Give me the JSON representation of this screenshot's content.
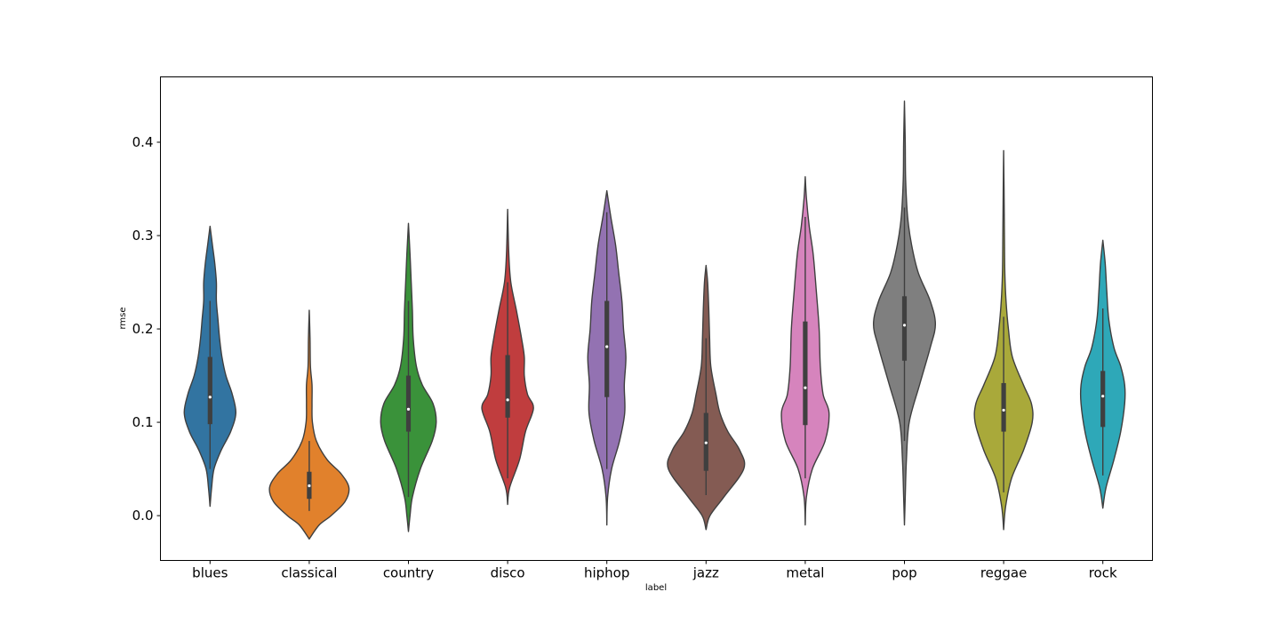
{
  "chart_data": {
    "type": "violin",
    "xlabel": "label",
    "ylabel": "rmse",
    "ylim": [
      -0.048,
      0.47
    ],
    "yticks": [
      0.0,
      0.1,
      0.2,
      0.3,
      0.4
    ],
    "ytick_labels": [
      "0.0",
      "0.1",
      "0.2",
      "0.3",
      "0.4"
    ],
    "grid": false,
    "categories": [
      "blues",
      "classical",
      "country",
      "disco",
      "hiphop",
      "jazz",
      "metal",
      "pop",
      "reggae",
      "rock"
    ],
    "series": [
      {
        "category": "blues",
        "color": "#3274a1",
        "min": 0.01,
        "max": 0.31,
        "q1": 0.098,
        "median": 0.127,
        "q3": 0.17,
        "whisker_low": 0.05,
        "whisker_high": 0.23,
        "profile": [
          [
            0.01,
            0.0
          ],
          [
            0.03,
            0.04
          ],
          [
            0.05,
            0.1
          ],
          [
            0.07,
            0.28
          ],
          [
            0.09,
            0.52
          ],
          [
            0.11,
            0.65
          ],
          [
            0.13,
            0.56
          ],
          [
            0.15,
            0.4
          ],
          [
            0.17,
            0.3
          ],
          [
            0.19,
            0.24
          ],
          [
            0.21,
            0.2
          ],
          [
            0.23,
            0.16
          ],
          [
            0.25,
            0.16
          ],
          [
            0.27,
            0.12
          ],
          [
            0.29,
            0.06
          ],
          [
            0.31,
            0.0
          ]
        ]
      },
      {
        "category": "classical",
        "color": "#e1812c",
        "min": -0.025,
        "max": 0.22,
        "q1": 0.018,
        "median": 0.032,
        "q3": 0.047,
        "whisker_low": 0.005,
        "whisker_high": 0.08,
        "profile": [
          [
            -0.025,
            0.0
          ],
          [
            -0.01,
            0.25
          ],
          [
            0.0,
            0.55
          ],
          [
            0.015,
            0.9
          ],
          [
            0.03,
            1.0
          ],
          [
            0.045,
            0.8
          ],
          [
            0.06,
            0.45
          ],
          [
            0.08,
            0.18
          ],
          [
            0.1,
            0.08
          ],
          [
            0.12,
            0.07
          ],
          [
            0.14,
            0.07
          ],
          [
            0.16,
            0.03
          ],
          [
            0.19,
            0.02
          ],
          [
            0.22,
            0.0
          ]
        ]
      },
      {
        "category": "country",
        "color": "#3a923a",
        "min": -0.017,
        "max": 0.313,
        "q1": 0.09,
        "median": 0.114,
        "q3": 0.15,
        "whisker_low": 0.02,
        "whisker_high": 0.23,
        "profile": [
          [
            -0.017,
            0.0
          ],
          [
            0.0,
            0.04
          ],
          [
            0.02,
            0.1
          ],
          [
            0.05,
            0.3
          ],
          [
            0.08,
            0.6
          ],
          [
            0.1,
            0.7
          ],
          [
            0.12,
            0.62
          ],
          [
            0.14,
            0.35
          ],
          [
            0.16,
            0.2
          ],
          [
            0.19,
            0.12
          ],
          [
            0.22,
            0.1
          ],
          [
            0.25,
            0.07
          ],
          [
            0.28,
            0.04
          ],
          [
            0.313,
            0.0
          ]
        ]
      },
      {
        "category": "disco",
        "color": "#c03d3e",
        "min": 0.012,
        "max": 0.328,
        "q1": 0.105,
        "median": 0.124,
        "q3": 0.172,
        "whisker_low": 0.04,
        "whisker_high": 0.25,
        "profile": [
          [
            0.012,
            0.0
          ],
          [
            0.03,
            0.05
          ],
          [
            0.06,
            0.3
          ],
          [
            0.09,
            0.45
          ],
          [
            0.115,
            0.65
          ],
          [
            0.13,
            0.5
          ],
          [
            0.15,
            0.42
          ],
          [
            0.17,
            0.42
          ],
          [
            0.19,
            0.35
          ],
          [
            0.22,
            0.22
          ],
          [
            0.25,
            0.08
          ],
          [
            0.28,
            0.03
          ],
          [
            0.328,
            0.0
          ]
        ]
      },
      {
        "category": "hiphop",
        "color": "#9372b2",
        "min": -0.01,
        "max": 0.348,
        "q1": 0.127,
        "median": 0.181,
        "q3": 0.23,
        "whisker_low": 0.05,
        "whisker_high": 0.325,
        "profile": [
          [
            -0.01,
            0.0
          ],
          [
            0.02,
            0.02
          ],
          [
            0.05,
            0.12
          ],
          [
            0.08,
            0.32
          ],
          [
            0.11,
            0.45
          ],
          [
            0.14,
            0.44
          ],
          [
            0.17,
            0.48
          ],
          [
            0.2,
            0.42
          ],
          [
            0.23,
            0.38
          ],
          [
            0.26,
            0.3
          ],
          [
            0.29,
            0.22
          ],
          [
            0.32,
            0.1
          ],
          [
            0.348,
            0.0
          ]
        ]
      },
      {
        "category": "jazz",
        "color": "#845b53",
        "min": -0.015,
        "max": 0.268,
        "q1": 0.048,
        "median": 0.078,
        "q3": 0.11,
        "whisker_low": 0.022,
        "whisker_high": 0.19,
        "profile": [
          [
            -0.015,
            0.0
          ],
          [
            0.0,
            0.1
          ],
          [
            0.02,
            0.45
          ],
          [
            0.05,
            0.95
          ],
          [
            0.07,
            0.85
          ],
          [
            0.09,
            0.55
          ],
          [
            0.11,
            0.35
          ],
          [
            0.13,
            0.25
          ],
          [
            0.16,
            0.12
          ],
          [
            0.19,
            0.09
          ],
          [
            0.22,
            0.07
          ],
          [
            0.25,
            0.04
          ],
          [
            0.268,
            0.0
          ]
        ]
      },
      {
        "category": "metal",
        "color": "#d684bd",
        "min": -0.01,
        "max": 0.363,
        "q1": 0.097,
        "median": 0.137,
        "q3": 0.208,
        "whisker_low": 0.04,
        "whisker_high": 0.32,
        "profile": [
          [
            -0.01,
            0.0
          ],
          [
            0.02,
            0.03
          ],
          [
            0.05,
            0.18
          ],
          [
            0.08,
            0.5
          ],
          [
            0.11,
            0.6
          ],
          [
            0.13,
            0.45
          ],
          [
            0.16,
            0.38
          ],
          [
            0.2,
            0.35
          ],
          [
            0.24,
            0.28
          ],
          [
            0.28,
            0.2
          ],
          [
            0.31,
            0.1
          ],
          [
            0.34,
            0.03
          ],
          [
            0.363,
            0.0
          ]
        ]
      },
      {
        "category": "pop",
        "color": "#7f7f7f",
        "min": -0.01,
        "max": 0.444,
        "q1": 0.166,
        "median": 0.204,
        "q3": 0.235,
        "whisker_low": 0.08,
        "whisker_high": 0.33,
        "profile": [
          [
            -0.01,
            0.0
          ],
          [
            0.02,
            0.02
          ],
          [
            0.06,
            0.05
          ],
          [
            0.1,
            0.12
          ],
          [
            0.14,
            0.38
          ],
          [
            0.18,
            0.65
          ],
          [
            0.205,
            0.78
          ],
          [
            0.23,
            0.65
          ],
          [
            0.26,
            0.35
          ],
          [
            0.29,
            0.18
          ],
          [
            0.32,
            0.08
          ],
          [
            0.36,
            0.03
          ],
          [
            0.4,
            0.02
          ],
          [
            0.444,
            0.0
          ]
        ]
      },
      {
        "category": "reggae",
        "color": "#a9a93a",
        "min": -0.015,
        "max": 0.391,
        "q1": 0.09,
        "median": 0.113,
        "q3": 0.142,
        "whisker_low": 0.025,
        "whisker_high": 0.213,
        "profile": [
          [
            -0.015,
            0.0
          ],
          [
            0.01,
            0.05
          ],
          [
            0.04,
            0.2
          ],
          [
            0.07,
            0.5
          ],
          [
            0.1,
            0.72
          ],
          [
            0.12,
            0.7
          ],
          [
            0.14,
            0.5
          ],
          [
            0.17,
            0.22
          ],
          [
            0.2,
            0.12
          ],
          [
            0.23,
            0.06
          ],
          [
            0.26,
            0.03
          ],
          [
            0.3,
            0.02
          ],
          [
            0.35,
            0.01
          ],
          [
            0.391,
            0.0
          ]
        ]
      },
      {
        "category": "rock",
        "color": "#2ea8b8",
        "min": 0.008,
        "max": 0.295,
        "q1": 0.095,
        "median": 0.128,
        "q3": 0.155,
        "whisker_low": 0.043,
        "whisker_high": 0.222,
        "profile": [
          [
            0.008,
            0.0
          ],
          [
            0.03,
            0.08
          ],
          [
            0.06,
            0.28
          ],
          [
            0.09,
            0.45
          ],
          [
            0.12,
            0.55
          ],
          [
            0.14,
            0.55
          ],
          [
            0.16,
            0.45
          ],
          [
            0.18,
            0.28
          ],
          [
            0.21,
            0.15
          ],
          [
            0.24,
            0.1
          ],
          [
            0.27,
            0.06
          ],
          [
            0.295,
            0.0
          ]
        ]
      }
    ]
  }
}
